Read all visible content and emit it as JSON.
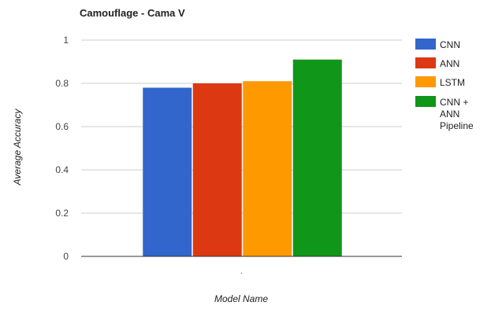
{
  "chart_data": {
    "type": "bar",
    "title": "Camouflage - Cama V",
    "xlabel": "Model Name",
    "ylabel": "Average Accuracy",
    "categories": [
      "."
    ],
    "series": [
      {
        "name": "CNN",
        "values": [
          0.78
        ]
      },
      {
        "name": "ANN",
        "values": [
          0.8
        ]
      },
      {
        "name": "LSTM",
        "values": [
          0.81
        ]
      },
      {
        "name": "CNN + ANN Pipeline",
        "values": [
          0.91
        ]
      }
    ],
    "ylim": [
      0,
      1
    ],
    "yticks": [
      0,
      0.2,
      0.4,
      0.6,
      0.8,
      1
    ],
    "ytick_labels": [
      "0",
      "0.2",
      "0.4",
      "0.6",
      "0.8",
      "1"
    ],
    "grid": true,
    "legend_position": "right",
    "legend_label_lines": [
      [
        "CNN"
      ],
      [
        "ANN"
      ],
      [
        "LSTM"
      ],
      [
        "CNN +",
        "ANN",
        "Pipeline"
      ]
    ],
    "colors": [
      "#3366cc",
      "#dc3912",
      "#ff9900",
      "#109618"
    ]
  }
}
